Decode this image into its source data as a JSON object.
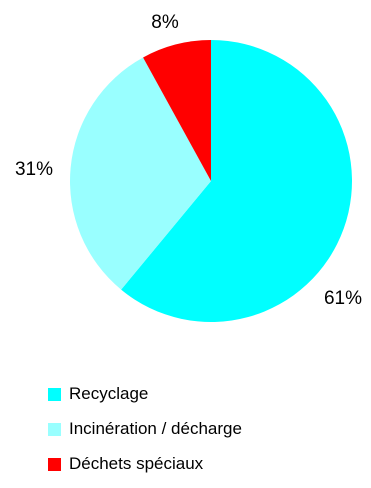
{
  "chart_data": {
    "type": "pie",
    "title": "",
    "slices": [
      {
        "label": "Recyclage",
        "value": 61,
        "value_label": "61%",
        "color": "#00FFFF"
      },
      {
        "label": "Incinération / décharge",
        "value": 31,
        "value_label": "31%",
        "color": "#99FFFF"
      },
      {
        "label": "Déchets spéciaux",
        "value": 8,
        "value_label": "8%",
        "color": "#FF0000"
      }
    ],
    "legend_position": "bottom-left",
    "start_angle": "12 o'clock",
    "direction": "clockwise"
  }
}
